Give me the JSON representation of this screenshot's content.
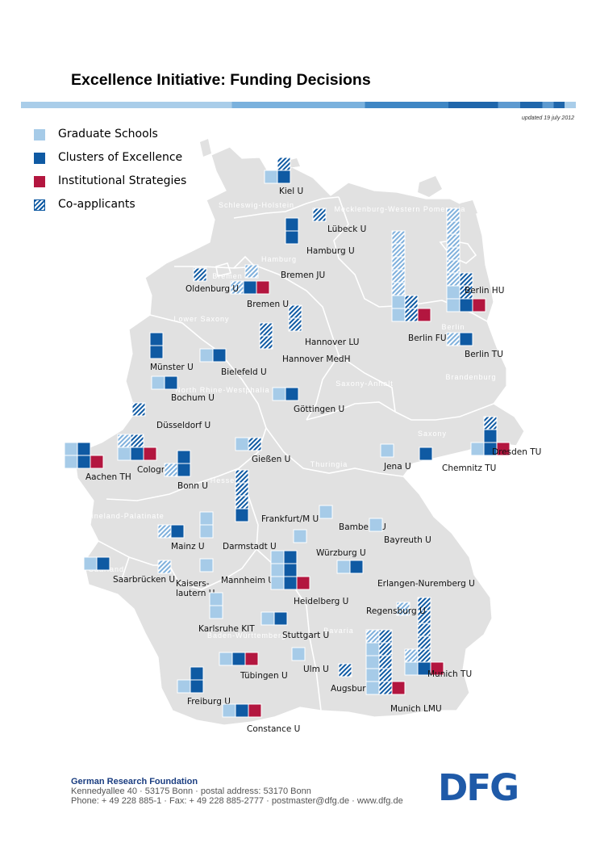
{
  "title": "Excellence Initiative: Funding Decisions",
  "updated": "updated 19 july 2012",
  "legend": [
    {
      "key": "grad",
      "label": "Graduate Schools",
      "color": "#a6cbe8"
    },
    {
      "key": "clus",
      "label": "Clusters of Excellence",
      "color": "#0f5aa3"
    },
    {
      "key": "inst",
      "label": "Institutional Strategies",
      "color": "#b3163f"
    },
    {
      "key": "coap",
      "label": "Co-applicants",
      "color": "#0f5aa3"
    }
  ],
  "colors": {
    "graduate": "#a6cbe8",
    "graduate_hatch": "#7fb0dc",
    "cluster": "#0f5aa3",
    "institutional": "#b3163f",
    "map_fill": "#e1e1e1",
    "map_border": "#ffffff",
    "region_label": "#ffffff",
    "dfg_blue": "#1f5aa8"
  },
  "regions": [
    "Schleswig-Holstein",
    "Hamburg",
    "Mecklenburg-Western Pomerania",
    "Bremen",
    "Lower Saxony",
    "Berlin",
    "Brandenburg",
    "Saxony-Anhalt",
    "North Rhine-Westphalia",
    "Saxony",
    "Thuringia",
    "Hesse",
    "Rhineland-Palatinate",
    "Saarland",
    "Baden-Württemberg",
    "Bavaria"
  ],
  "universities": [
    {
      "name": "Kiel U",
      "grad": 1,
      "grad_co": 0,
      "clus": 1,
      "clus_co": 1,
      "inst": 0
    },
    {
      "name": "Lübeck U",
      "grad": 0,
      "grad_co": 0,
      "clus": 0,
      "clus_co": 1,
      "inst": 0
    },
    {
      "name": "Hamburg U",
      "grad": 0,
      "grad_co": 0,
      "clus": 2,
      "clus_co": 0,
      "inst": 0
    },
    {
      "name": "Bremen JU",
      "grad": 0,
      "grad_co": 1,
      "clus": 0,
      "clus_co": 0,
      "inst": 0
    },
    {
      "name": "Bremen U",
      "grad": 0,
      "grad_co": 1,
      "clus": 1,
      "clus_co": 0,
      "inst": 1
    },
    {
      "name": "Oldenburg U",
      "grad": 0,
      "grad_co": 0,
      "clus": 0,
      "clus_co": 1,
      "inst": 0
    },
    {
      "name": "Hannover LU",
      "grad": 0,
      "grad_co": 0,
      "clus": 0,
      "clus_co": 2,
      "inst": 0
    },
    {
      "name": "Hannover MedH",
      "grad": 0,
      "grad_co": 0,
      "clus": 0,
      "clus_co": 2,
      "inst": 0
    },
    {
      "name": "Münster U",
      "grad": 0,
      "grad_co": 0,
      "clus": 2,
      "clus_co": 0,
      "inst": 0
    },
    {
      "name": "Bielefeld U",
      "grad": 1,
      "grad_co": 0,
      "clus": 1,
      "clus_co": 0,
      "inst": 0
    },
    {
      "name": "Bochum U",
      "grad": 1,
      "grad_co": 0,
      "clus": 1,
      "clus_co": 0,
      "inst": 0
    },
    {
      "name": "Düsseldorf U",
      "grad": 0,
      "grad_co": 0,
      "clus": 0,
      "clus_co": 1,
      "inst": 0
    },
    {
      "name": "Göttingen U",
      "grad": 1,
      "grad_co": 0,
      "clus": 1,
      "clus_co": 0,
      "inst": 0
    },
    {
      "name": "Cologne U",
      "grad": 1,
      "grad_co": 1,
      "clus": 1,
      "clus_co": 1,
      "inst": 1
    },
    {
      "name": "Aachen TH",
      "grad": 2,
      "grad_co": 0,
      "clus": 2,
      "clus_co": 0,
      "inst": 1
    },
    {
      "name": "Bonn U",
      "grad": 0,
      "grad_co": 1,
      "clus": 2,
      "clus_co": 0,
      "inst": 0
    },
    {
      "name": "Gießen U",
      "grad": 1,
      "grad_co": 0,
      "clus": 0,
      "clus_co": 1,
      "inst": 0
    },
    {
      "name": "Frankfurt/M U",
      "grad": 0,
      "grad_co": 0,
      "clus": 1,
      "clus_co": 3,
      "inst": 0
    },
    {
      "name": "Mainz U",
      "grad": 0,
      "grad_co": 1,
      "clus": 1,
      "clus_co": 0,
      "inst": 0
    },
    {
      "name": "Darmstadt U",
      "grad": 2,
      "grad_co": 0,
      "clus": 0,
      "clus_co": 0,
      "inst": 0
    },
    {
      "name": "Saarbrücken U",
      "grad": 1,
      "grad_co": 0,
      "clus": 1,
      "clus_co": 0,
      "inst": 0
    },
    {
      "name": "Kaiserslautern U",
      "grad": 0,
      "grad_co": 1,
      "clus": 0,
      "clus_co": 0,
      "inst": 0
    },
    {
      "name": "Mannheim U",
      "grad": 1,
      "grad_co": 0,
      "clus": 0,
      "clus_co": 0,
      "inst": 0
    },
    {
      "name": "Heidelberg U",
      "grad": 3,
      "grad_co": 0,
      "clus": 3,
      "clus_co": 0,
      "inst": 1
    },
    {
      "name": "Karlsruhe KIT",
      "grad": 2,
      "grad_co": 0,
      "clus": 0,
      "clus_co": 0,
      "inst": 0
    },
    {
      "name": "Stuttgart U",
      "grad": 1,
      "grad_co": 0,
      "clus": 1,
      "clus_co": 0,
      "inst": 0
    },
    {
      "name": "Tübingen U",
      "grad": 1,
      "grad_co": 0,
      "clus": 1,
      "clus_co": 0,
      "inst": 1
    },
    {
      "name": "Freiburg U",
      "grad": 1,
      "grad_co": 0,
      "clus": 2,
      "clus_co": 0,
      "inst": 0
    },
    {
      "name": "Constance U",
      "grad": 1,
      "grad_co": 0,
      "clus": 1,
      "clus_co": 0,
      "inst": 1
    },
    {
      "name": "Ulm U",
      "grad": 1,
      "grad_co": 0,
      "clus": 0,
      "clus_co": 0,
      "inst": 0
    },
    {
      "name": "Augsburg U",
      "grad": 0,
      "grad_co": 0,
      "clus": 0,
      "clus_co": 1,
      "inst": 0
    },
    {
      "name": "Munich LMU",
      "grad": 4,
      "grad_co": 1,
      "clus": 0,
      "clus_co": 5,
      "inst": 1
    },
    {
      "name": "Munich TU",
      "grad": 1,
      "grad_co": 1,
      "clus": 1,
      "clus_co": 5,
      "inst": 1
    },
    {
      "name": "Regensburg U",
      "grad": 0,
      "grad_co": 1,
      "clus": 0,
      "clus_co": 0,
      "inst": 0
    },
    {
      "name": "Erlangen-Nuremberg U",
      "grad": 1,
      "grad_co": 0,
      "clus": 1,
      "clus_co": 0,
      "inst": 0
    },
    {
      "name": "Würzburg U",
      "grad": 1,
      "grad_co": 0,
      "clus": 0,
      "clus_co": 0,
      "inst": 0
    },
    {
      "name": "Bamberg U",
      "grad": 1,
      "grad_co": 0,
      "clus": 0,
      "clus_co": 0,
      "inst": 0
    },
    {
      "name": "Bayreuth U",
      "grad": 1,
      "grad_co": 0,
      "clus": 0,
      "clus_co": 0,
      "inst": 0
    },
    {
      "name": "Jena U",
      "grad": 1,
      "grad_co": 0,
      "clus": 0,
      "clus_co": 0,
      "inst": 0
    },
    {
      "name": "Chemnitz TU",
      "grad": 0,
      "grad_co": 0,
      "clus": 1,
      "clus_co": 0,
      "inst": 0
    },
    {
      "name": "Dresden TU",
      "grad": 1,
      "grad_co": 0,
      "clus": 2,
      "clus_co": 1,
      "inst": 1
    },
    {
      "name": "Berlin HU",
      "grad": 2,
      "grad_co": 6,
      "clus": 1,
      "clus_co": 2,
      "inst": 1
    },
    {
      "name": "Berlin FU",
      "grad": 2,
      "grad_co": 5,
      "clus": 0,
      "clus_co": 2,
      "inst": 1
    },
    {
      "name": "Berlin TU",
      "grad": 0,
      "grad_co": 1,
      "clus": 1,
      "clus_co": 0,
      "inst": 0
    }
  ],
  "footer": {
    "org": "German Research Foundation",
    "address": "Kennedyallee 40 · 53175 Bonn · postal address: 53170 Bonn",
    "contact": "Phone: + 49 228 885-1 · Fax: + 49 228 885-2777 · postmaster@dfg.de · www.dfg.de",
    "logo_text": "DFG"
  }
}
